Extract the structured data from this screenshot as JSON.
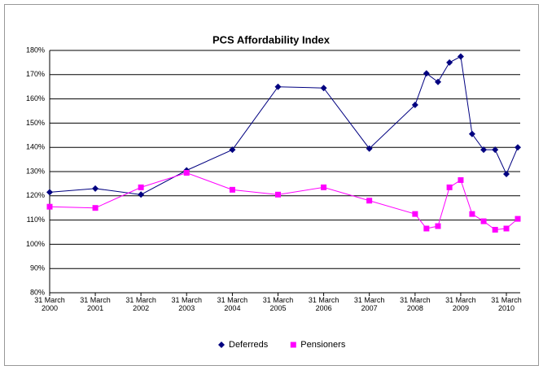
{
  "chart_data": {
    "type": "line",
    "title": "PCS Affordability Index",
    "series": [
      {
        "name": "Deferreds",
        "color": "#000080",
        "marker": "diamond",
        "x": [
          "2000-03-31",
          "2001-03-31",
          "2002-03-31",
          "2003-03-31",
          "2004-03-31",
          "2005-03-31",
          "2006-03-31",
          "2007-03-31",
          "2008-03-31",
          "2008-06-30",
          "2008-09-30",
          "2008-12-31",
          "2009-03-31",
          "2009-06-30",
          "2009-09-30",
          "2009-12-31",
          "2010-03-31",
          "2010-06-30"
        ],
        "values": [
          121.5,
          123,
          120.5,
          130.5,
          139,
          165,
          164.5,
          139.5,
          157.5,
          170.5,
          167,
          175,
          177.5,
          145.5,
          139,
          139,
          129,
          140
        ]
      },
      {
        "name": "Pensioners",
        "color": "#ff00ff",
        "marker": "square",
        "x": [
          "2000-03-31",
          "2001-03-31",
          "2002-03-31",
          "2003-03-31",
          "2004-03-31",
          "2005-03-31",
          "2006-03-31",
          "2007-03-31",
          "2008-03-31",
          "2008-06-30",
          "2008-09-30",
          "2008-12-31",
          "2009-03-31",
          "2009-06-30",
          "2009-09-30",
          "2009-12-31",
          "2010-03-31",
          "2010-06-30"
        ],
        "values": [
          115.5,
          115,
          123.5,
          129.5,
          122.5,
          120.5,
          123.5,
          118,
          112.5,
          106.5,
          107.5,
          123.5,
          126.5,
          112.5,
          109.5,
          106,
          106.5,
          110.5
        ]
      }
    ],
    "xlim": [
      "2000-03-31",
      "2010-06-30"
    ],
    "xticks": [
      {
        "value": "2000-03-31",
        "label": "31 March 2000"
      },
      {
        "value": "2001-03-31",
        "label": "31 March 2001"
      },
      {
        "value": "2002-03-31",
        "label": "31 March 2002"
      },
      {
        "value": "2003-03-31",
        "label": "31 March 2003"
      },
      {
        "value": "2004-03-31",
        "label": "31 March 2004"
      },
      {
        "value": "2005-03-31",
        "label": "31 March 2005"
      },
      {
        "value": "2006-03-31",
        "label": "31 March 2006"
      },
      {
        "value": "2007-03-31",
        "label": "31 March 2007"
      },
      {
        "value": "2008-03-31",
        "label": "31 March 2008"
      },
      {
        "value": "2009-03-31",
        "label": "31 March 2009"
      },
      {
        "value": "2010-03-31",
        "label": "31 March 2010"
      }
    ],
    "ylim": [
      80,
      180
    ],
    "yticks": [
      {
        "value": 80,
        "label": "80%"
      },
      {
        "value": 90,
        "label": "90%"
      },
      {
        "value": 100,
        "label": "100%"
      },
      {
        "value": 110,
        "label": "110%"
      },
      {
        "value": 120,
        "label": "120%"
      },
      {
        "value": 130,
        "label": "130%"
      },
      {
        "value": 140,
        "label": "140%"
      },
      {
        "value": 150,
        "label": "150%"
      },
      {
        "value": 160,
        "label": "160%"
      },
      {
        "value": 170,
        "label": "170%"
      },
      {
        "value": 180,
        "label": "180%"
      }
    ],
    "grid": true,
    "legend": "bottom"
  }
}
